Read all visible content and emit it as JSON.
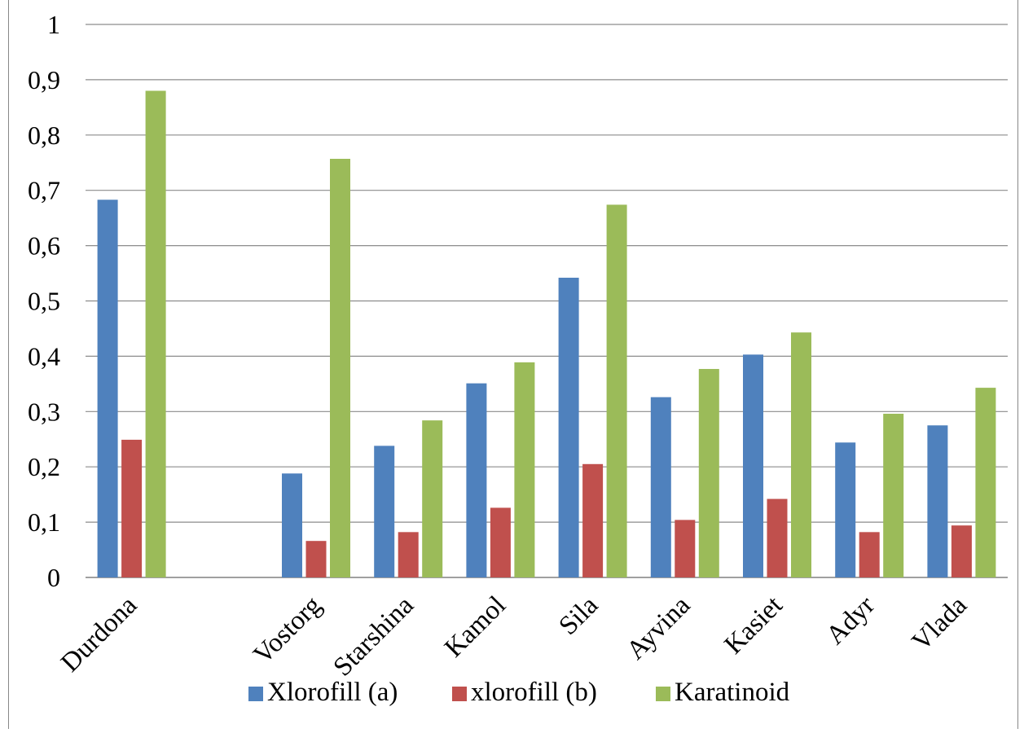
{
  "chart_data": {
    "type": "bar",
    "title": "",
    "xlabel": "",
    "ylabel": "",
    "categories": [
      "Durdona",
      "",
      "Vostorg",
      "Starshina",
      "Kamol",
      "Sila",
      "Ayvina",
      "Kasiet",
      "Adyr",
      "Vlada"
    ],
    "series": [
      {
        "name": "Xlorofill (a)",
        "color": "#4F81BD",
        "values": [
          0.683,
          null,
          0.188,
          0.238,
          0.351,
          0.542,
          0.326,
          0.403,
          0.244,
          0.275
        ]
      },
      {
        "name": "xlorofill (b)",
        "color": "#C0504D",
        "values": [
          0.249,
          null,
          0.066,
          0.082,
          0.126,
          0.205,
          0.104,
          0.142,
          0.082,
          0.094
        ]
      },
      {
        "name": "Karatinoid",
        "color": "#9BBB59",
        "values": [
          0.88,
          null,
          0.757,
          0.284,
          0.389,
          0.674,
          0.377,
          0.443,
          0.296,
          0.343
        ]
      }
    ],
    "ylim": [
      0,
      1
    ],
    "yticks": [
      "0",
      "0,1",
      "0,2",
      "0,3",
      "0,4",
      "0,5",
      "0,6",
      "0,7",
      "0,8",
      "0,9",
      "1"
    ],
    "grid": true,
    "legend_position": "bottom"
  }
}
